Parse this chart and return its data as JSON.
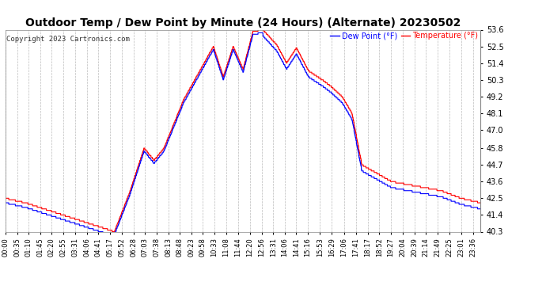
{
  "title": "Outdoor Temp / Dew Point by Minute (24 Hours) (Alternate) 20230502",
  "copyright": "Copyright 2023 Cartronics.com",
  "legend_dew": "Dew Point (°F)",
  "legend_temp": "Temperature (°F)",
  "ylim": [
    40.3,
    53.6
  ],
  "yticks": [
    40.3,
    41.4,
    42.5,
    43.6,
    44.7,
    45.8,
    47.0,
    48.1,
    49.2,
    50.3,
    51.4,
    52.5,
    53.6
  ],
  "color_temp": "#ff0000",
  "color_dew": "#0000ff",
  "bg_color": "#ffffff",
  "grid_color": "#bbbbbb",
  "title_fontsize": 10,
  "tick_fontsize": 7,
  "xlabel_fontsize": 6,
  "n_minutes": 1440,
  "xtick_labels": [
    "00:00",
    "00:35",
    "01:10",
    "01:45",
    "02:20",
    "02:55",
    "03:31",
    "04:06",
    "04:41",
    "05:17",
    "05:52",
    "06:28",
    "07:03",
    "07:38",
    "08:13",
    "08:48",
    "09:23",
    "09:58",
    "10:33",
    "11:08",
    "11:44",
    "12:20",
    "12:56",
    "13:31",
    "14:06",
    "14:41",
    "15:16",
    "15:53",
    "16:29",
    "17:06",
    "17:41",
    "18:17",
    "18:52",
    "19:27",
    "20:04",
    "20:39",
    "21:14",
    "21:49",
    "22:25",
    "23:01",
    "23:36"
  ]
}
